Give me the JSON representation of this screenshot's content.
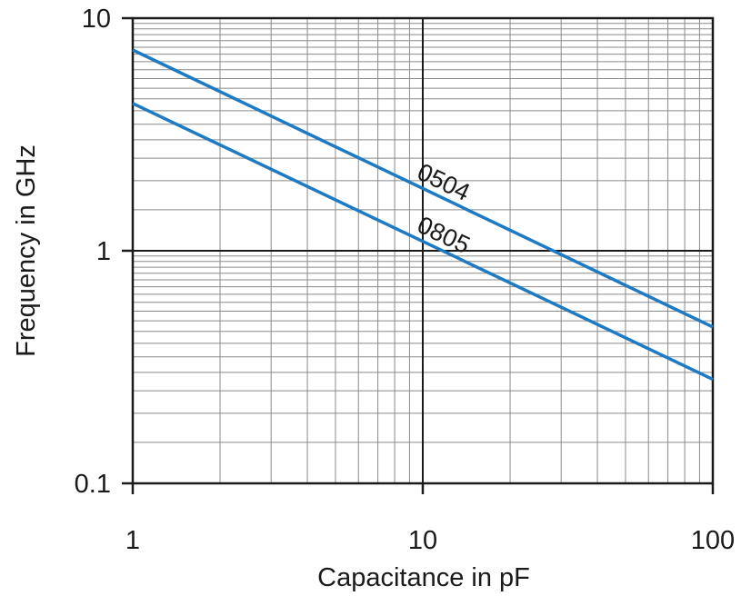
{
  "chart_data": {
    "type": "line",
    "title": "",
    "xlabel": "Capacitance in pF",
    "ylabel": "Frequency in GHz",
    "x_scale": "log",
    "y_scale": "log",
    "xlim": [
      1,
      100
    ],
    "ylim": [
      0.1,
      10
    ],
    "grid": true,
    "x_ticks": [
      {
        "value": 1,
        "label": "1"
      },
      {
        "value": 10,
        "label": "10"
      },
      {
        "value": 100,
        "label": "100"
      }
    ],
    "y_ticks": [
      {
        "value": 0.1,
        "label": "0.1"
      },
      {
        "value": 1,
        "label": "1"
      },
      {
        "value": 10,
        "label": "10"
      }
    ],
    "series": [
      {
        "name": "0504",
        "color": "#1f7ac4",
        "x": [
          1,
          100
        ],
        "y": [
          7.3,
          0.47
        ]
      },
      {
        "name": "0805",
        "color": "#1f7ac4",
        "x": [
          1,
          100
        ],
        "y": [
          4.3,
          0.28
        ]
      }
    ]
  }
}
